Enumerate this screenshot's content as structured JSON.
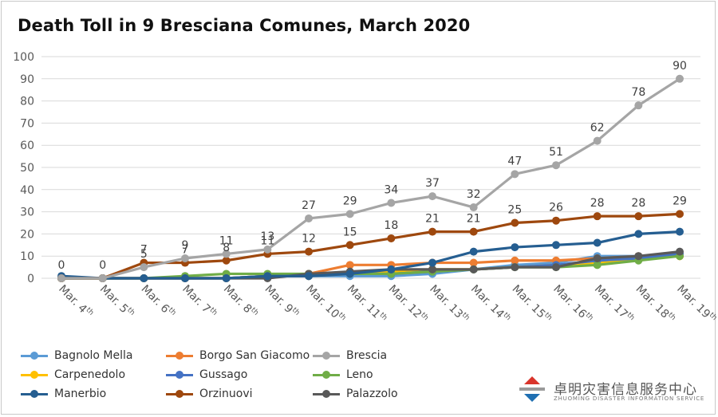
{
  "chart_data": {
    "type": "line",
    "title": "Death Toll in 9 Bresciana Comunes, March 2020",
    "xlabel": "",
    "ylabel": "",
    "ylim": [
      0,
      100
    ],
    "yticks": [
      0,
      10,
      20,
      30,
      40,
      50,
      60,
      70,
      80,
      90,
      100
    ],
    "grid": true,
    "legend_position": "bottom",
    "categories": [
      {
        "main": "Mar. 4",
        "sup": "th"
      },
      {
        "main": "Mar. 5",
        "sup": "th"
      },
      {
        "main": "Mar. 6",
        "sup": "th"
      },
      {
        "main": "Mar. 7",
        "sup": "th"
      },
      {
        "main": "Mar. 8",
        "sup": "th"
      },
      {
        "main": "Mar. 9",
        "sup": "th"
      },
      {
        "main": "Mar. 10",
        "sup": "th"
      },
      {
        "main": "Mar. 11",
        "sup": "th"
      },
      {
        "main": "Mar. 12",
        "sup": "th"
      },
      {
        "main": "Mar. 13",
        "sup": "th"
      },
      {
        "main": "Mar. 14",
        "sup": "th"
      },
      {
        "main": "Mar. 15",
        "sup": "th"
      },
      {
        "main": "Mar. 16",
        "sup": "th"
      },
      {
        "main": "Mar. 17",
        "sup": "th"
      },
      {
        "main": "Mar. 18",
        "sup": "th"
      },
      {
        "main": "Mar. 19",
        "sup": "th"
      }
    ],
    "series": [
      {
        "name": "Bagnolo Mella",
        "color": "#5b9bd5",
        "values": [
          0,
          0,
          0,
          0,
          0,
          1,
          1,
          1,
          1,
          2,
          4,
          6,
          7,
          10,
          10,
          11
        ],
        "labeled": false
      },
      {
        "name": "Borgo San Giacomo",
        "color": "#ed7d31",
        "values": [
          0,
          0,
          0,
          0,
          0,
          1,
          2,
          6,
          6,
          7,
          7,
          8,
          8,
          9,
          10,
          10
        ],
        "labeled": false
      },
      {
        "name": "Carpenedolo",
        "color": "#ffc000",
        "values": [
          0,
          0,
          0,
          0,
          0,
          1,
          1,
          2,
          3,
          4,
          4,
          5,
          6,
          7,
          9,
          10
        ],
        "labeled": false
      },
      {
        "name": "Gussago",
        "color": "#4472c4",
        "values": [
          0,
          0,
          0,
          0,
          0,
          1,
          1,
          2,
          2,
          3,
          4,
          5,
          6,
          8,
          9,
          11
        ],
        "labeled": false
      },
      {
        "name": "Leno",
        "color": "#70ad47",
        "values": [
          0,
          0,
          0,
          1,
          2,
          2,
          2,
          2,
          2,
          3,
          4,
          5,
          5,
          6,
          8,
          10
        ],
        "labeled": false
      },
      {
        "name": "Palazzolo",
        "color": "#595959",
        "values": [
          0,
          0,
          0,
          0,
          0,
          0,
          2,
          3,
          4,
          4,
          4,
          5,
          5,
          9,
          10,
          12
        ],
        "labeled": false
      },
      {
        "name": "Manerbio",
        "color": "#255e91",
        "values": [
          1,
          0,
          0,
          0,
          0,
          1,
          1,
          2,
          4,
          7,
          12,
          14,
          15,
          16,
          20,
          21
        ],
        "labeled": false
      },
      {
        "name": "Orzinuovi",
        "color": "#9e480e",
        "values": [
          0,
          0,
          7,
          7,
          8,
          11,
          12,
          15,
          18,
          21,
          21,
          25,
          26,
          28,
          28,
          29
        ],
        "labeled": true
      },
      {
        "name": "Brescia",
        "color": "#a5a5a5",
        "values": [
          0,
          0,
          5,
          9,
          11,
          13,
          27,
          29,
          34,
          37,
          32,
          47,
          51,
          62,
          78,
          90
        ],
        "labeled": true
      }
    ],
    "data_labels": [
      {
        "series": "Brescia",
        "label_indices": [
          0,
          1,
          2,
          3,
          4,
          5,
          6,
          7,
          8,
          9,
          10,
          11,
          12,
          13,
          14,
          15
        ]
      },
      {
        "series": "Orzinuovi",
        "label_indices": [
          2,
          3,
          4,
          5,
          6,
          7,
          8,
          9,
          10,
          11,
          12,
          13,
          14,
          15
        ]
      }
    ]
  },
  "legend": [
    {
      "name": "Bagnolo Mella",
      "color": "#5b9bd5"
    },
    {
      "name": "Borgo San Giacomo",
      "color": "#ed7d31"
    },
    {
      "name": "Brescia",
      "color": "#a5a5a5"
    },
    {
      "name": "Carpenedolo",
      "color": "#ffc000"
    },
    {
      "name": "Gussago",
      "color": "#4472c4"
    },
    {
      "name": "Leno",
      "color": "#70ad47"
    },
    {
      "name": "Manerbio",
      "color": "#255e91"
    },
    {
      "name": "Orzinuovi",
      "color": "#9e480e"
    },
    {
      "name": "Palazzolo",
      "color": "#595959"
    }
  ],
  "watermark": {
    "cn": "卓明灾害信息服务中心",
    "en": "ZHUOMING DISASTER INFORMATION SERVICE",
    "colors": {
      "red": "#d9342b",
      "blue": "#1f6fb2",
      "gray": "#9a9a9a"
    }
  }
}
